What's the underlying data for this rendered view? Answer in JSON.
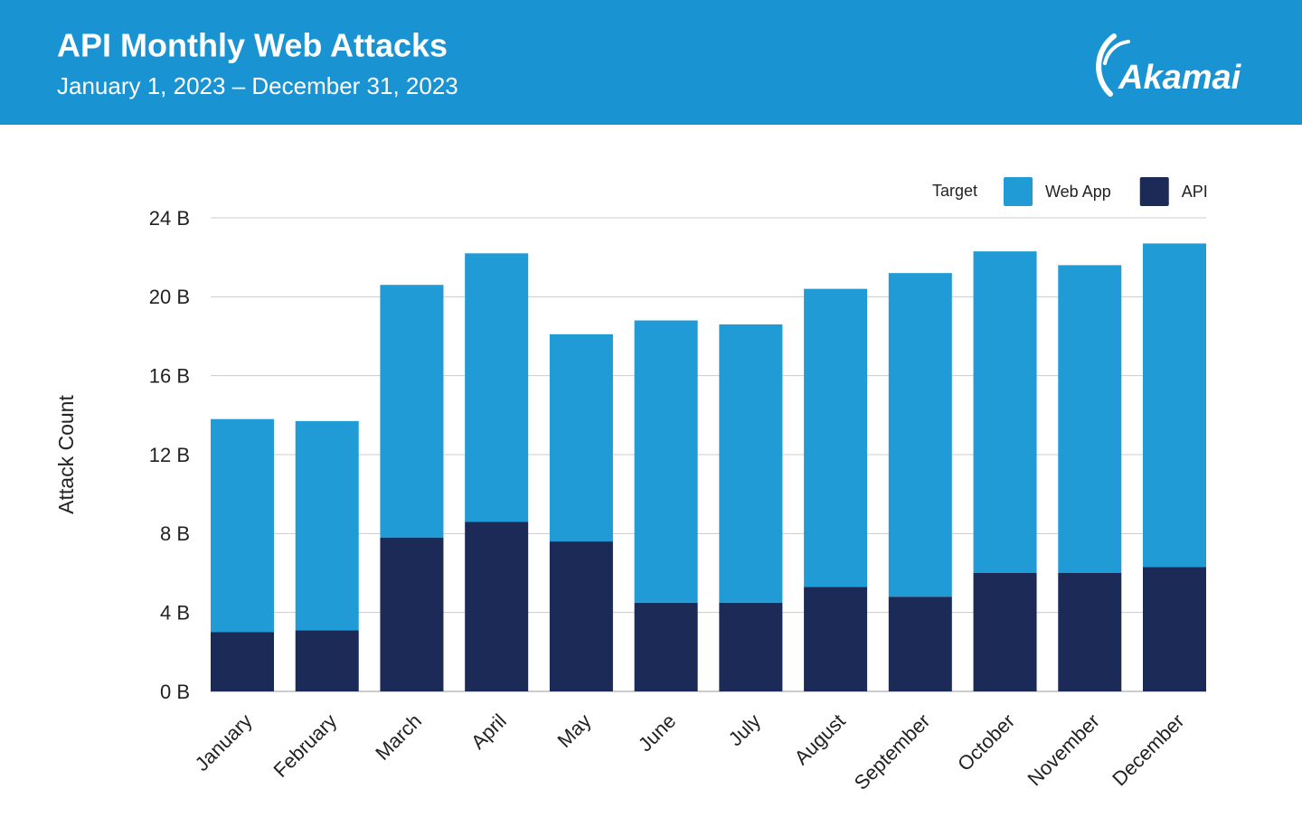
{
  "chart_data": {
    "type": "stacked_bar",
    "title": "API Monthly Web Attacks",
    "subtitle": "January 1, 2023 – December 31, 2023",
    "logo": "Akamai",
    "y_label": "Attack Count",
    "legend_title": "Target",
    "legend_position": "top-right",
    "categories": [
      "January",
      "February",
      "March",
      "April",
      "May",
      "June",
      "July",
      "August",
      "September",
      "October",
      "November",
      "December"
    ],
    "series": [
      {
        "name": "Web App",
        "color": "#219bd6",
        "values": [
          10.8,
          10.6,
          12.8,
          13.6,
          10.5,
          14.3,
          14.1,
          15.1,
          16.4,
          16.3,
          15.6,
          16.4
        ]
      },
      {
        "name": "API",
        "color": "#1b2a56",
        "values": [
          3.0,
          3.1,
          7.8,
          8.6,
          7.6,
          4.5,
          4.5,
          5.3,
          4.8,
          6.0,
          6.0,
          6.3
        ]
      }
    ],
    "ylim": [
      0,
      24
    ],
    "yticks": [
      {
        "value": 0,
        "label": "0 B"
      },
      {
        "value": 4,
        "label": "4 B"
      },
      {
        "value": 8,
        "label": "8 B"
      },
      {
        "value": 12,
        "label": "12 B"
      },
      {
        "value": 16,
        "label": "16 B"
      },
      {
        "value": 20,
        "label": "20 B"
      },
      {
        "value": 24,
        "label": "24 B"
      }
    ],
    "grid": true
  }
}
